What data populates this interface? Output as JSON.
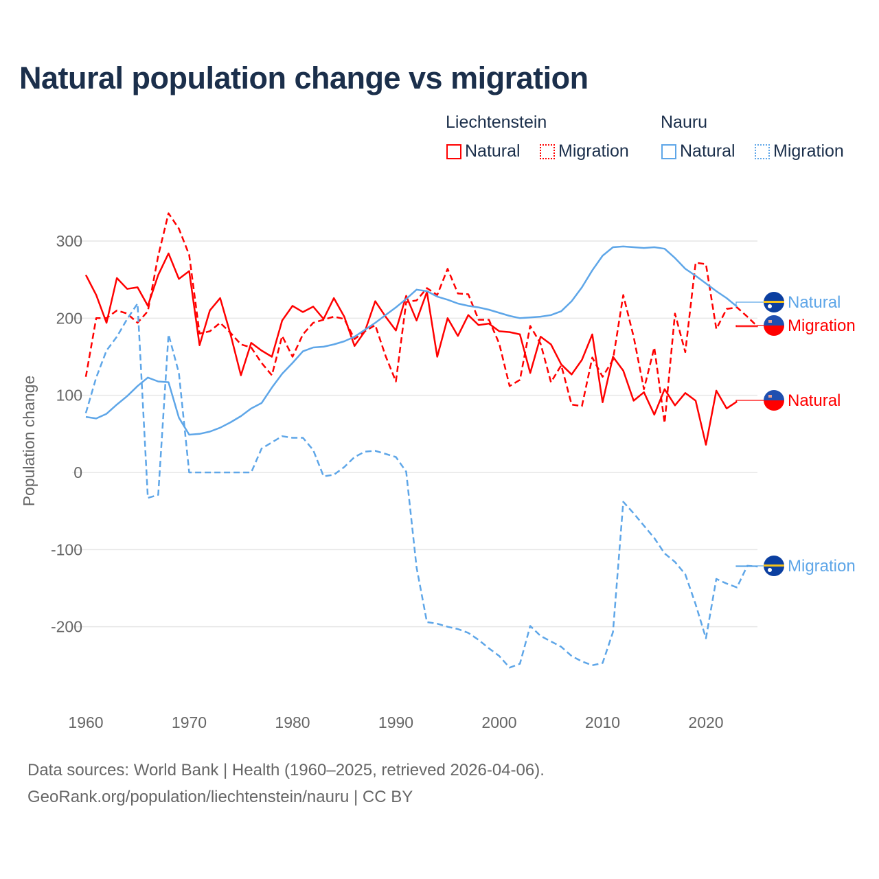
{
  "title": "Natural population change vs migration",
  "legend": {
    "groups": [
      {
        "name": "Liechtenstein",
        "items": [
          {
            "label": "Natural",
            "style": "solid"
          },
          {
            "label": "Migration",
            "style": "dotted"
          }
        ],
        "color": "#ff0000"
      },
      {
        "name": "Nauru",
        "items": [
          {
            "label": "Natural",
            "style": "solid"
          },
          {
            "label": "Migration",
            "style": "dotted"
          }
        ],
        "color": "#5ea6e8"
      }
    ]
  },
  "footer": {
    "line1": "Data sources: World Bank | Health (1960–2025, retrieved 2026-04-06).",
    "line2": "GeoRank.org/population/liechtenstein/nauru | CC BY"
  },
  "chart_data": {
    "type": "line",
    "title": "Natural population change vs migration",
    "xlabel": "",
    "ylabel": "Population change",
    "xlim": [
      1960,
      2025
    ],
    "ylim": [
      -290,
      350
    ],
    "xticks": [
      1960,
      1970,
      1980,
      1990,
      2000,
      2010,
      2020
    ],
    "yticks": [
      -200,
      -100,
      0,
      100,
      200,
      300
    ],
    "ytick_labels": [
      "-200",
      "-100",
      "0",
      "100",
      "200",
      "300"
    ],
    "grid": true,
    "legend_position": "top-right",
    "series": [
      {
        "name": "Liechtenstein Natural",
        "end_label": "Natural",
        "country": "Liechtenstein",
        "color": "#ff0000",
        "dashed": false,
        "start_year": 1960,
        "values": [
          256,
          230,
          194,
          252,
          238,
          240,
          216,
          256,
          284,
          251,
          261,
          165,
          210,
          226,
          179,
          126,
          168,
          158,
          150,
          197,
          216,
          208,
          215,
          199,
          226,
          202,
          164,
          183,
          222,
          202,
          184,
          229,
          197,
          234,
          150,
          200,
          177,
          204,
          191,
          193,
          183,
          182,
          179,
          129,
          176,
          166,
          140,
          127,
          146,
          179,
          91,
          150,
          132,
          93,
          104,
          75,
          108,
          87,
          103,
          93,
          36,
          106,
          83,
          92
        ]
      },
      {
        "name": "Liechtenstein Migration",
        "end_label": "Migration",
        "country": "Liechtenstein",
        "color": "#ff0000",
        "dashed": true,
        "start_year": 1960,
        "values": [
          124,
          200,
          200,
          210,
          206,
          194,
          209,
          281,
          336,
          316,
          282,
          180,
          183,
          194,
          181,
          166,
          162,
          142,
          126,
          177,
          150,
          179,
          194,
          198,
          202,
          199,
          173,
          183,
          191,
          151,
          118,
          221,
          223,
          239,
          230,
          264,
          232,
          231,
          198,
          198,
          167,
          112,
          120,
          190,
          167,
          117,
          139,
          88,
          86,
          149,
          124,
          146,
          230,
          176,
          108,
          162,
          64,
          206,
          156,
          272,
          270,
          186,
          212,
          214,
          202,
          189
        ]
      },
      {
        "name": "Nauru Natural",
        "end_label": "Natural",
        "country": "Nauru",
        "color": "#5ea6e8",
        "dashed": false,
        "start_year": 1960,
        "values": [
          72,
          70,
          76,
          88,
          99,
          112,
          123,
          118,
          117,
          71,
          49,
          50,
          53,
          58,
          65,
          73,
          83,
          90,
          110,
          128,
          142,
          157,
          162,
          163,
          166,
          170,
          176,
          185,
          194,
          204,
          214,
          225,
          237,
          235,
          228,
          224,
          219,
          216,
          214,
          211,
          207,
          203,
          200,
          201,
          202,
          204,
          209,
          222,
          240,
          262,
          281,
          292,
          293,
          292,
          291,
          292,
          290,
          278,
          264,
          255,
          245,
          235,
          226,
          215
        ]
      },
      {
        "name": "Nauru Migration",
        "end_label": "Migration",
        "country": "Nauru",
        "color": "#5ea6e8",
        "dashed": true,
        "start_year": 1960,
        "values": [
          77,
          123,
          158,
          176,
          199,
          219,
          -33,
          -29,
          179,
          129,
          0,
          0,
          0,
          0,
          0,
          0,
          0,
          31,
          39,
          47,
          45,
          45,
          29,
          -5,
          -3,
          7,
          20,
          27,
          28,
          24,
          20,
          1,
          -123,
          -194,
          -196,
          -200,
          -203,
          -208,
          -217,
          -228,
          -238,
          -253,
          -248,
          -199,
          -212,
          -219,
          -226,
          -238,
          -245,
          -250,
          -247,
          -207,
          -38,
          -53,
          -69,
          -85,
          -105,
          -116,
          -132,
          -171,
          -215,
          -138,
          -144,
          -149,
          -121,
          -122
        ]
      }
    ]
  }
}
